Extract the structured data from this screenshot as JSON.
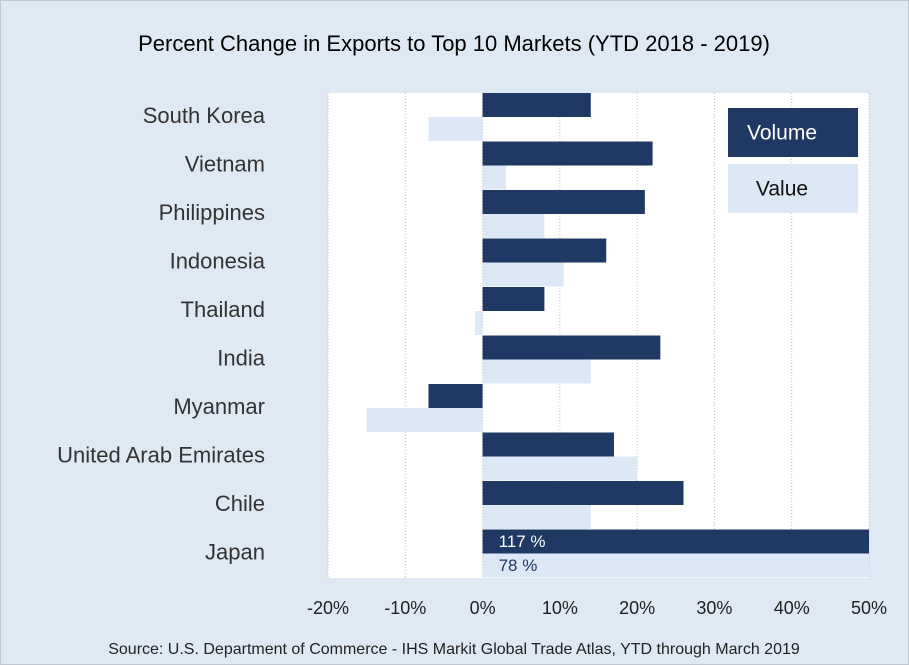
{
  "chart_data": {
    "type": "bar",
    "orientation": "horizontal",
    "title": "Percent Change in Exports to Top 10 Markets (YTD 2018  - 2019)",
    "source": "Source: U.S. Department of Commerce - IHS Markit Global Trade Atlas, YTD through March 2019",
    "categories": [
      "South Korea",
      "Vietnam",
      "Philippines",
      "Indonesia",
      "Thailand",
      "India",
      "Myanmar",
      "United Arab Emirates",
      "Chile",
      "Japan"
    ],
    "series": [
      {
        "name": "Volume",
        "color": "#1f3864",
        "values": [
          14,
          22,
          21,
          16,
          8,
          23,
          -7,
          17,
          26,
          117
        ],
        "value_labels": [
          null,
          null,
          null,
          null,
          null,
          null,
          null,
          null,
          null,
          "117 %"
        ]
      },
      {
        "name": "Value",
        "color": "#dce8f6",
        "values": [
          -7,
          3,
          8,
          10.5,
          -1,
          14,
          -15,
          20,
          14,
          78
        ],
        "value_labels": [
          null,
          null,
          null,
          null,
          null,
          null,
          null,
          null,
          null,
          "78 %"
        ]
      }
    ],
    "xlim": [
      -20,
      50
    ],
    "xticks": [
      {
        "value": -20,
        "label": "-20%"
      },
      {
        "value": -10,
        "label": "-10%"
      },
      {
        "value": 0,
        "label": "0%"
      },
      {
        "value": 10,
        "label": "10%"
      },
      {
        "value": 20,
        "label": "20%"
      },
      {
        "value": 30,
        "label": "30%"
      },
      {
        "value": 40,
        "label": "40%"
      },
      {
        "value": 50,
        "label": "50%"
      }
    ],
    "grid": true,
    "legend": "upper right"
  }
}
